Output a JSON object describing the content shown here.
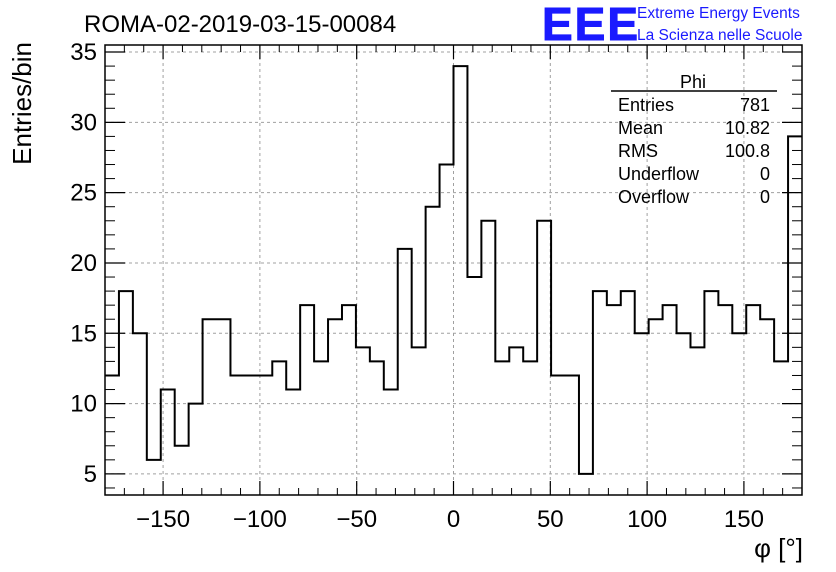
{
  "header": {
    "run_title": "ROMA-02-2019-03-15-00084",
    "logo_text": "EEE",
    "org_line1": "Extreme Energy Events",
    "org_line2": "La Scienza nelle Scuole"
  },
  "stats_box": {
    "title": "Phi",
    "rows": [
      {
        "label": "Entries",
        "value": "781"
      },
      {
        "label": "Mean",
        "value": "10.82"
      },
      {
        "label": "RMS",
        "value": "100.8"
      },
      {
        "label": "Underflow",
        "value": "0"
      },
      {
        "label": "Overflow",
        "value": "0"
      }
    ]
  },
  "colors": {
    "line": "#000000",
    "grid": "#a0a0a0",
    "logo": "#1a1aff",
    "org_text": "#1a1aff"
  },
  "chart_data": {
    "type": "histogram",
    "title": "ROMA-02-2019-03-15-00084",
    "xlabel": "φ [°]",
    "ylabel": "Entries/bin",
    "xlim": [
      -180,
      180
    ],
    "ylim": [
      3.5,
      35.5
    ],
    "bin_edges_start": -180,
    "bin_width": 7.2,
    "values": [
      12,
      18,
      15,
      6,
      11,
      7,
      10,
      16,
      16,
      12,
      12,
      12,
      13,
      11,
      17,
      13,
      16,
      17,
      14,
      13,
      11,
      21,
      14,
      24,
      27,
      34,
      19,
      23,
      13,
      14,
      13,
      23,
      12,
      12,
      5,
      18,
      17,
      18,
      15,
      16,
      17,
      15,
      14,
      18,
      17,
      15,
      17,
      16,
      13,
      29
    ],
    "x_ticks": [
      -150,
      -100,
      -50,
      0,
      50,
      100,
      150
    ],
    "x_tick_labels": [
      "−150",
      "−100",
      "−50",
      "0",
      "50",
      "100",
      "150"
    ],
    "y_ticks": [
      5,
      10,
      15,
      20,
      25,
      30,
      35
    ],
    "y_tick_labels": [
      "5",
      "10",
      "15",
      "20",
      "25",
      "30",
      "35"
    ],
    "grid": true
  }
}
